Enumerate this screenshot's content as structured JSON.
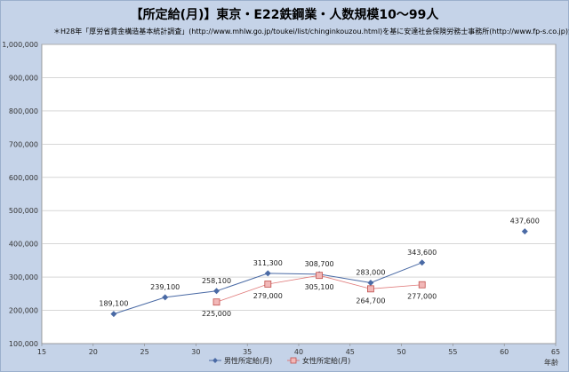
{
  "chart_data": {
    "type": "line",
    "title": "【所定給(月)】東京・E22鉄鋼業・人数規模10～99人",
    "subtitle": "＊H28年「厚労省賃金構造基本統計調査」(http://www.mhlw.go.jp/toukei/list/chinginkouzou.html)を基に安達社会保険労務士事務所(http://www.fp-s.co.jp)が作成",
    "xlabel": "年齢",
    "xlim": [
      15,
      65
    ],
    "ylim": [
      100000,
      1000000
    ],
    "x_ticks": [
      "15",
      "20",
      "25",
      "30",
      "35",
      "40",
      "45",
      "50",
      "55",
      "60",
      "65"
    ],
    "y_ticks": [
      "100,000",
      "200,000",
      "300,000",
      "400,000",
      "500,000",
      "600,000",
      "700,000",
      "800,000",
      "900,000",
      "1,000,000"
    ],
    "grid": true,
    "legend_position": "bottom",
    "series": [
      {
        "name": "男性所定給(月)",
        "color": "#4a6aa5",
        "marker": "diamond",
        "x": [
          22,
          27,
          32,
          37,
          42,
          47,
          52,
          62
        ],
        "y": [
          189100,
          239100,
          258100,
          311300,
          308700,
          283000,
          343600,
          437600
        ],
        "labels": [
          "189,100",
          "239,100",
          "258,100",
          "311,300",
          "308,700",
          "283,000",
          "343,600",
          "437,600"
        ],
        "segments": [
          [
            0,
            6
          ]
        ]
      },
      {
        "name": "女性所定給(月)",
        "color": "#e07a7a",
        "marker": "square",
        "x": [
          32,
          37,
          42,
          47,
          52
        ],
        "y": [
          225000,
          279000,
          305100,
          264700,
          277000
        ],
        "labels": [
          "225,000",
          "279,000",
          "305,100",
          "264,700",
          "277,000"
        ],
        "segments": [
          [
            0,
            4
          ]
        ]
      }
    ]
  }
}
